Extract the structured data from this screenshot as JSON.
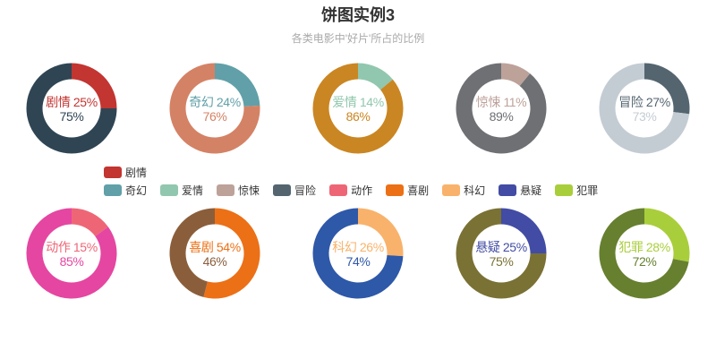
{
  "title": "饼图实例3",
  "subtitle": "各类电影中'好片'所占的比例",
  "colors": {
    "title_text": "#333333",
    "subtitle_text": "#aaaaaa",
    "legend_text": "#333333",
    "background": "#ffffff"
  },
  "chart_data": {
    "type": "pie",
    "title": "饼图实例3",
    "subtitle": "各类电影中'好片'所占的比例",
    "unit": "%",
    "description": "10 donut charts, each showing the percentage of good films per movie genre vs the rest",
    "pies": [
      {
        "name": "剧情",
        "value": 25,
        "rest": 75,
        "color": "#c23531",
        "rest_color": "#2f4554"
      },
      {
        "name": "奇幻",
        "value": 24,
        "rest": 76,
        "color": "#61a0a8",
        "rest_color": "#d48265"
      },
      {
        "name": "爱情",
        "value": 14,
        "rest": 86,
        "color": "#91c7ae",
        "rest_color": "#ca8622"
      },
      {
        "name": "惊悚",
        "value": 11,
        "rest": 89,
        "color": "#bda29a",
        "rest_color": "#6e7074"
      },
      {
        "name": "冒险",
        "value": 27,
        "rest": 73,
        "color": "#546570",
        "rest_color": "#c4ccd3"
      },
      {
        "name": "动作",
        "value": 15,
        "rest": 85,
        "color": "#ee6676",
        "rest_color": "#e546a1"
      },
      {
        "name": "喜剧",
        "value": 54,
        "rest": 46,
        "color": "#ec7016",
        "rest_color": "#8b5e3b"
      },
      {
        "name": "科幻",
        "value": 26,
        "rest": 74,
        "color": "#f9b26b",
        "rest_color": "#2e58a8"
      },
      {
        "name": "悬疑",
        "value": 25,
        "rest": 75,
        "color": "#424ca4",
        "rest_color": "#7a7134"
      },
      {
        "name": "犯罪",
        "value": 28,
        "rest": 72,
        "color": "#a9ce3b",
        "rest_color": "#66802f"
      }
    ],
    "legend_rows": [
      [
        "剧情"
      ],
      [
        "奇幻",
        "爱情",
        "惊悚",
        "冒险",
        "动作",
        "喜剧",
        "科幻",
        "悬疑",
        "犯罪"
      ]
    ]
  }
}
